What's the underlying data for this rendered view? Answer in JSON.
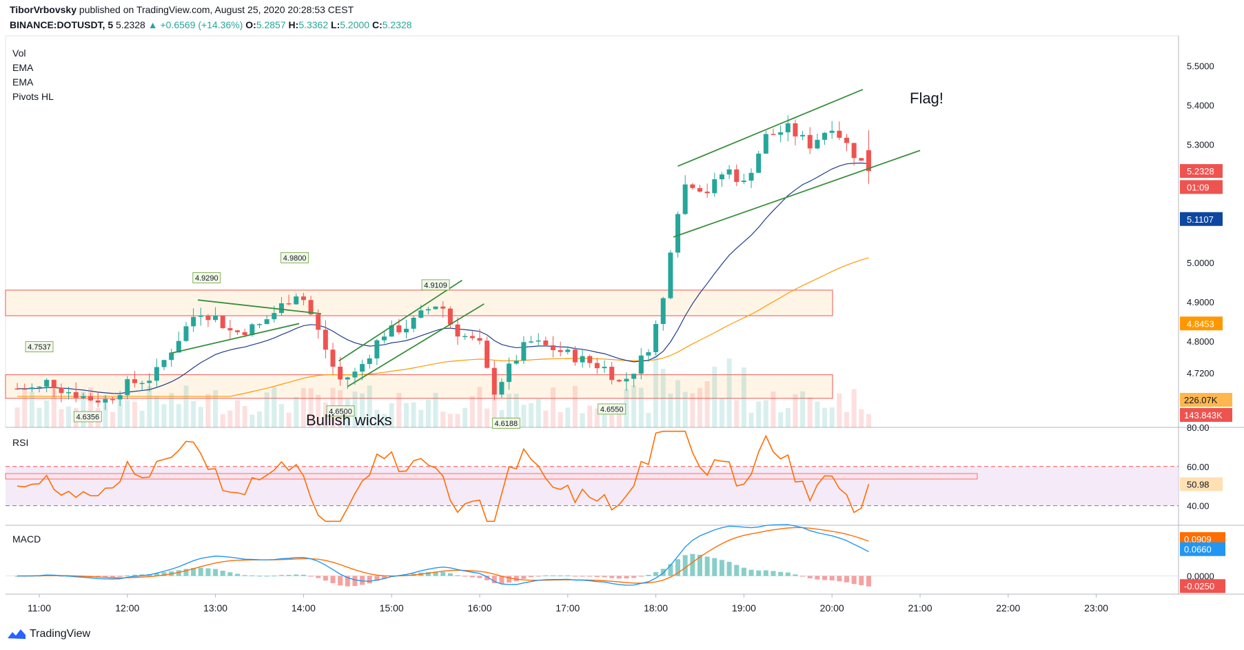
{
  "header": {
    "author": "TiborVrbovsky",
    "published": "published on TradingView.com, August 25, 2020 20:28:53 CEST",
    "symbol": "BINANCE:DOTUSDT, 5",
    "last": "5.2328",
    "change": "+0.6569 (+14.36%)",
    "open_label": "O:",
    "open": "5.2857",
    "high_label": "H:",
    "high": "5.3362",
    "low_label": "L:",
    "low": "5.2000",
    "close_label": "C:",
    "close": "5.2328"
  },
  "indicators": [
    "Vol",
    "EMA",
    "EMA",
    "Pivots HL"
  ],
  "panels": {
    "rsi": "RSI",
    "macd": "MACD"
  },
  "annotations": {
    "flag": "Flag!",
    "wicks": "Bullish wicks"
  },
  "footer": {
    "brand": "TradingView"
  },
  "colors": {
    "up": "#26a69a",
    "down": "#ef5350",
    "ema_fast": "#1e3a8a",
    "ema_slow": "#ff9800",
    "rsi": "#ff6d00",
    "macd": "#2196f3",
    "signal": "#ff6d00",
    "trend": "#388e3c",
    "zone_fill": "#fff3e0",
    "zone_border": "#ef5350",
    "rsi_band": "#f3e5f5"
  },
  "chart_data": {
    "type": "candlestick",
    "price_axis": {
      "ticks": [
        "5.5000",
        "5.4000",
        "5.3000",
        "5.0000",
        "4.9000",
        "4.8000",
        "4.7200"
      ],
      "ylim": [
        4.59,
        5.55
      ]
    },
    "time_axis": {
      "ticks": [
        "11:00",
        "12:00",
        "13:00",
        "14:00",
        "15:00",
        "16:00",
        "17:00",
        "18:00",
        "19:00",
        "20:00",
        "21:00",
        "22:00",
        "23:00"
      ]
    },
    "price_badges": [
      {
        "label": "5.2328",
        "value": 5.2328,
        "color": "#ef5350"
      },
      {
        "label": "01:09",
        "value": 5.192,
        "color": "#ef5350"
      },
      {
        "label": "5.1107",
        "value": 5.1107,
        "color": "#0d47a1"
      },
      {
        "label": "4.8453",
        "value": 4.8453,
        "color": "#ff9800"
      }
    ],
    "volume_badges": [
      {
        "label": "226.07K",
        "color": "#ffb74d"
      },
      {
        "label": "143.843K",
        "color": "#ef5350"
      }
    ],
    "pivots": [
      {
        "label": "4.7537",
        "value": 4.7537,
        "type": "high"
      },
      {
        "label": "4.6356",
        "value": 4.6356,
        "type": "low"
      },
      {
        "label": "4.9290",
        "value": 4.929,
        "type": "high"
      },
      {
        "label": "4.9800",
        "value": 4.98,
        "type": "high"
      },
      {
        "label": "4.6500",
        "value": 4.65,
        "type": "low"
      },
      {
        "label": "4.9109",
        "value": 4.9109,
        "type": "high"
      },
      {
        "label": "4.6188",
        "value": 4.6188,
        "type": "low"
      },
      {
        "label": "4.6550",
        "value": 4.655,
        "type": "low"
      }
    ],
    "zones": [
      {
        "top": 4.93,
        "bottom": 4.865
      },
      {
        "top": 4.715,
        "bottom": 4.655
      }
    ],
    "rsi": {
      "ticks": [
        "80.00",
        "60.00",
        "40.00"
      ],
      "levels": [
        60,
        40
      ],
      "ylim": [
        30,
        80
      ],
      "last": "50.98"
    },
    "macd": {
      "ticks": [
        "0.0000"
      ],
      "ylim": [
        -0.045,
        0.125
      ],
      "macd_last": "0.0660",
      "signal_last": "0.0909",
      "hist_last": "-0.0250"
    }
  }
}
